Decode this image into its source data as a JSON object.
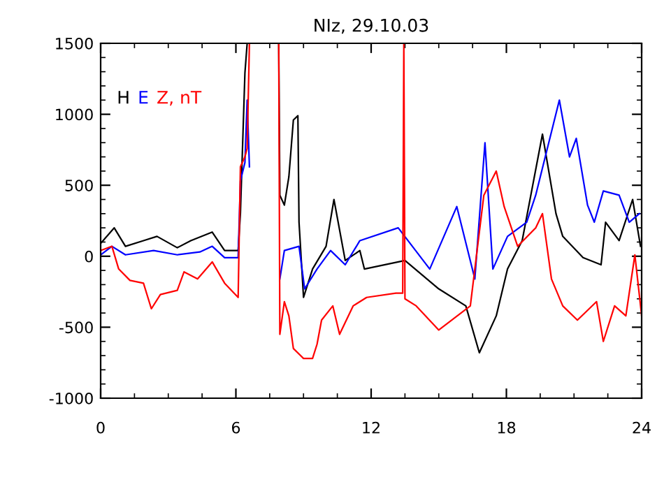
{
  "chart_data": {
    "type": "line",
    "title": "NIz, 29.10.03",
    "xlim": [
      0,
      24
    ],
    "xticks": [
      0,
      6,
      12,
      18,
      24
    ],
    "ylim": [
      -1000,
      1500
    ],
    "yticks": [
      -1000,
      -500,
      0,
      500,
      1000,
      1500
    ],
    "grid": false,
    "legend": "top left",
    "series": [
      {
        "name": "H",
        "color": "#000000",
        "x": [
          0,
          0.6,
          1.1,
          1.9,
          2.5,
          3.4,
          4.0,
          4.95,
          5.5,
          6.1,
          6.2,
          6.4,
          6.5,
          6.6,
          6.7,
          7.9,
          7.95,
          8.15,
          8.35,
          8.55,
          8.75,
          8.8,
          9.0,
          9.4,
          10.0,
          10.35,
          10.85,
          11.5,
          11.7,
          13.5,
          15.0,
          16.2,
          16.8,
          17.55,
          18.05,
          18.7,
          19.6,
          20.2,
          20.5,
          21.4,
          22.2,
          22.4,
          23.0,
          23.6,
          23.95
        ],
        "values": [
          90,
          200,
          70,
          110,
          140,
          60,
          110,
          170,
          40,
          40,
          300,
          1290,
          1500,
          1500,
          null,
          1500,
          430,
          360,
          560,
          960,
          990,
          240,
          -290,
          -90,
          70,
          400,
          -30,
          40,
          -90,
          -30,
          -230,
          -350,
          -680,
          -420,
          -90,
          110,
          860,
          300,
          140,
          -10,
          -60,
          240,
          110,
          400,
          70
        ]
      },
      {
        "name": "E",
        "color": "#0000ff",
        "x": [
          0,
          0.5,
          1.1,
          2.35,
          3.4,
          4.4,
          4.95,
          5.5,
          6.1,
          6.2,
          6.4,
          6.5,
          6.6,
          6.7,
          7.95,
          8.15,
          8.8,
          9.05,
          9.6,
          10.2,
          10.85,
          11.5,
          13.2,
          14.6,
          15.8,
          16.6,
          17.05,
          17.4,
          18.05,
          18.9,
          19.3,
          20.35,
          20.8,
          21.1,
          21.6,
          21.9,
          22.3,
          23.0,
          23.45,
          23.9
        ],
        "values": [
          10,
          70,
          10,
          40,
          10,
          30,
          70,
          -10,
          -10,
          530,
          660,
          1100,
          630,
          null,
          -160,
          40,
          70,
          -230,
          -90,
          40,
          -60,
          110,
          200,
          -90,
          350,
          -160,
          800,
          -90,
          140,
          240,
          430,
          1100,
          700,
          830,
          360,
          240,
          460,
          430,
          240,
          300
        ]
      },
      {
        "name": "Z, nT",
        "color": "#ff0000",
        "x": [
          0,
          0.5,
          0.8,
          1.3,
          1.9,
          2.25,
          2.65,
          3.4,
          3.7,
          4.3,
          4.95,
          5.5,
          6.1,
          6.2,
          6.4,
          6.5,
          6.6,
          6.7,
          7.9,
          7.95,
          8.15,
          8.35,
          8.55,
          9.0,
          9.4,
          9.6,
          9.8,
          10.3,
          10.6,
          11.2,
          11.8,
          13.1,
          13.4,
          13.45,
          13.5,
          14.0,
          15.0,
          16.4,
          17.0,
          17.55,
          17.9,
          18.5,
          19.3,
          19.6,
          20.0,
          20.5,
          21.15,
          22.0,
          22.3,
          22.8,
          23.3,
          23.7,
          24.0
        ],
        "values": [
          40,
          70,
          -90,
          -170,
          -190,
          -370,
          -270,
          -240,
          -110,
          -160,
          -40,
          -190,
          -290,
          630,
          700,
          760,
          1500,
          null,
          1500,
          -550,
          -320,
          -420,
          -650,
          -720,
          -720,
          -620,
          -450,
          -350,
          -550,
          -350,
          -290,
          -260,
          -260,
          1500,
          -300,
          -350,
          -520,
          -350,
          430,
          600,
          350,
          70,
          200,
          300,
          -160,
          -350,
          -450,
          -320,
          -600,
          -350,
          -420,
          10,
          -420
        ]
      }
    ]
  }
}
